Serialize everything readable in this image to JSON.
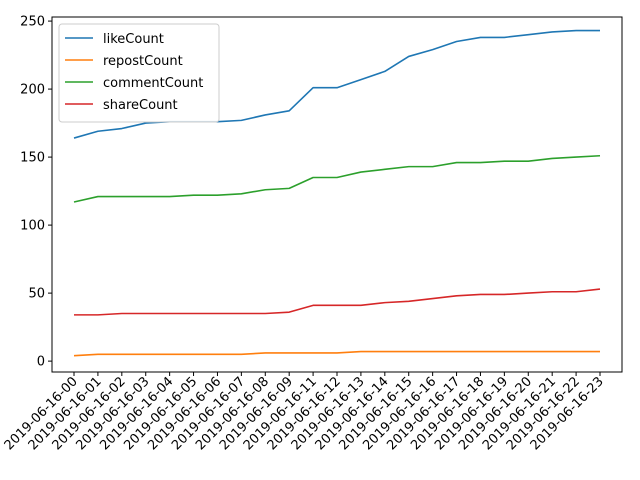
{
  "chart_data": {
    "type": "line",
    "title": "",
    "xlabel": "",
    "ylabel": "",
    "x": [
      "2019-06-16-00",
      "2019-06-16-01",
      "2019-06-16-02",
      "2019-06-16-03",
      "2019-06-16-04",
      "2019-06-16-05",
      "2019-06-16-06",
      "2019-06-16-07",
      "2019-06-16-08",
      "2019-06-16-09",
      "2019-06-16-11",
      "2019-06-16-12",
      "2019-06-16-13",
      "2019-06-16-14",
      "2019-06-16-15",
      "2019-06-16-16",
      "2019-06-16-17",
      "2019-06-16-18",
      "2019-06-16-19",
      "2019-06-16-20",
      "2019-06-16-21",
      "2019-06-16-22",
      "2019-06-16-23"
    ],
    "ylim": [
      -8,
      253
    ],
    "yticks": [
      0,
      50,
      100,
      150,
      200,
      250
    ],
    "grid": false,
    "legend_position": "top-left",
    "series": [
      {
        "name": "likeCount",
        "color": "#1f77b4",
        "values": [
          164,
          169,
          171,
          175,
          176,
          176,
          176,
          177,
          181,
          184,
          201,
          201,
          207,
          213,
          224,
          229,
          235,
          238,
          238,
          240,
          242,
          243,
          243
        ]
      },
      {
        "name": "repostCount",
        "color": "#ff7f0e",
        "values": [
          4,
          5,
          5,
          5,
          5,
          5,
          5,
          5,
          6,
          6,
          6,
          6,
          7,
          7,
          7,
          7,
          7,
          7,
          7,
          7,
          7,
          7,
          7
        ]
      },
      {
        "name": "commentCount",
        "color": "#2ca02c",
        "values": [
          117,
          121,
          121,
          121,
          121,
          122,
          122,
          123,
          126,
          127,
          135,
          135,
          139,
          141,
          143,
          143,
          146,
          146,
          147,
          147,
          149,
          150,
          151
        ]
      },
      {
        "name": "shareCount",
        "color": "#d62728",
        "values": [
          34,
          34,
          35,
          35,
          35,
          35,
          35,
          35,
          35,
          36,
          41,
          41,
          41,
          43,
          44,
          46,
          48,
          49,
          49,
          50,
          51,
          51,
          53
        ]
      }
    ]
  }
}
